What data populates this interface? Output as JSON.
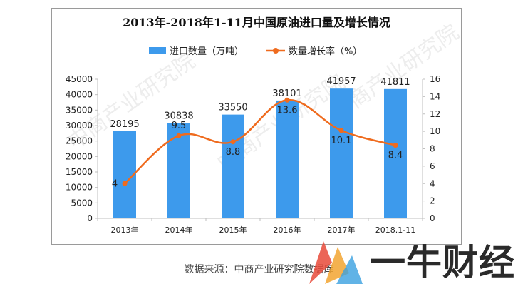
{
  "page": {
    "source": "数据来源：中商产业研究院数据库",
    "watermark_logo": "一牛财经",
    "watermark_text": "中商产业研究院"
  },
  "chart_data": {
    "type": "bar",
    "title": "2013年-2018年1-11月中国原油进口量及增长情况",
    "categories": [
      "2013年",
      "2014年",
      "2015年",
      "2016年",
      "2017年",
      "2018.1-11"
    ],
    "series": [
      {
        "name": "进口数量（万吨）",
        "type": "bar",
        "axis": "left",
        "color": "#3d9aec",
        "values": [
          28195,
          30838,
          33550,
          38101,
          41957,
          41811
        ],
        "labels": [
          "28195",
          "30838",
          "33550",
          "38101",
          "41957",
          "41811"
        ]
      },
      {
        "name": "数量增长率（%）",
        "type": "line",
        "axis": "right",
        "color": "#ef6b1e",
        "values": [
          4,
          9.5,
          8.8,
          13.6,
          10.1,
          8.4
        ],
        "labels": [
          "4",
          "9.5",
          "8.8",
          "13.6",
          "10.1",
          "8.4"
        ]
      }
    ],
    "y_left": {
      "min": 0,
      "max": 45000,
      "step": 5000,
      "ticks": [
        "0",
        "5000",
        "10000",
        "15000",
        "20000",
        "25000",
        "30000",
        "35000",
        "40000",
        "45000"
      ]
    },
    "y_right": {
      "min": 0,
      "max": 16,
      "step": 2,
      "ticks": [
        "0",
        "2",
        "4",
        "6",
        "8",
        "10",
        "12",
        "14",
        "16"
      ]
    },
    "legend_position": "top-center",
    "grid": false
  }
}
